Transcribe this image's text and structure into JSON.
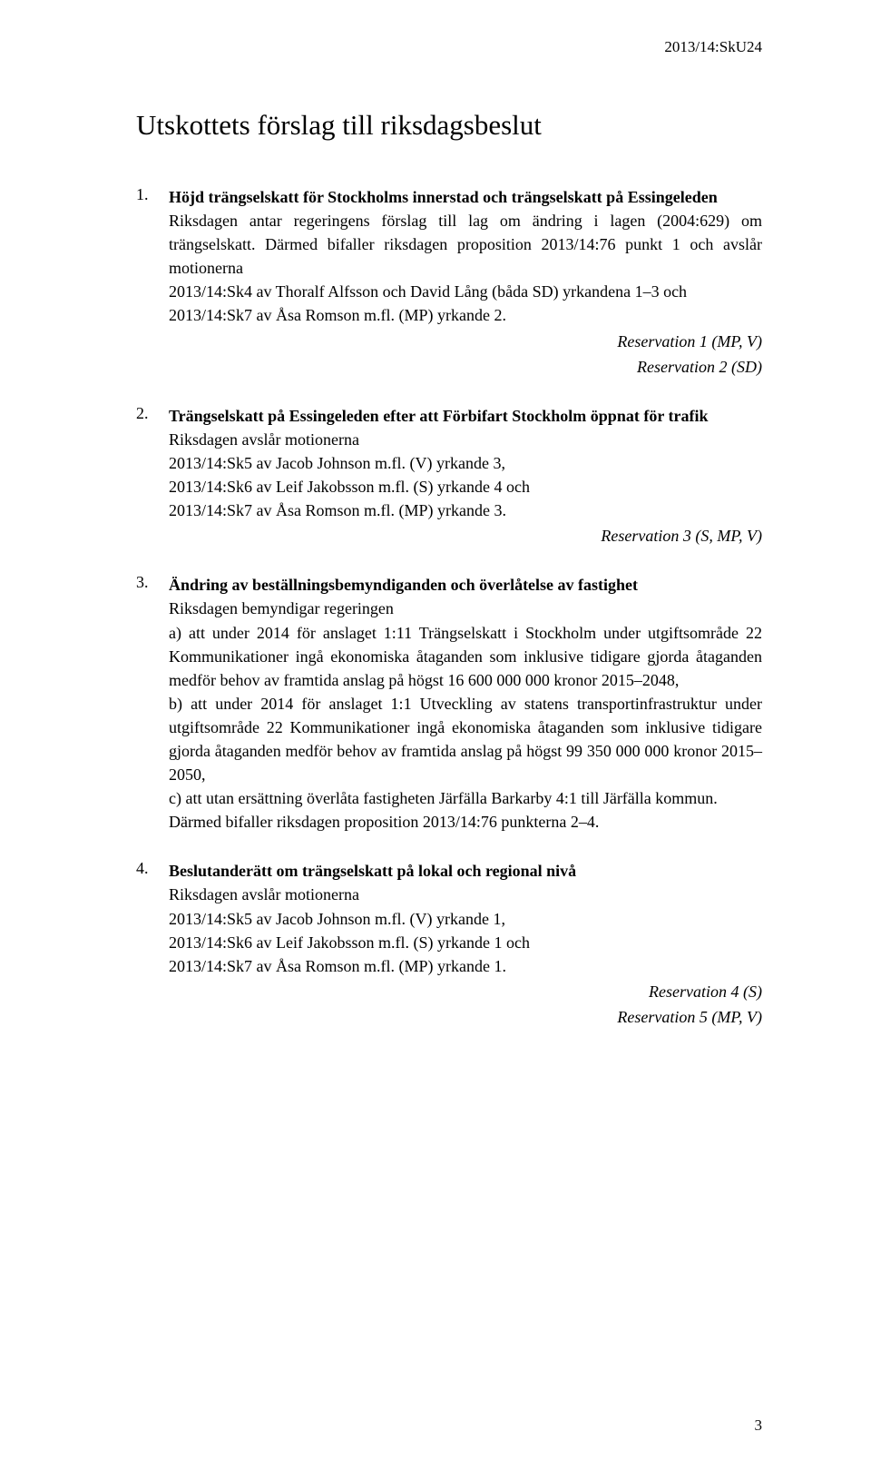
{
  "header": "2013/14:SkU24",
  "title": "Utskottets förslag till riksdagsbeslut",
  "page_number": "3",
  "items": [
    {
      "num": "1.",
      "title": "Höjd trängselskatt för Stockholms innerstad och trängselskatt på Essingeleden",
      "paragraphs": [
        "Riksdagen antar regeringens förslag till lag om ändring i lagen (2004:629) om trängselskatt. Därmed bifaller riksdagen proposition 2013/14:76 punkt 1 och avslår motionerna",
        "2013/14:Sk4 av Thoralf Alfsson och David Lång (båda SD) yrkandena 1–3 och",
        "2013/14:Sk7 av Åsa Romson m.fl. (MP) yrkande 2."
      ],
      "reservations": [
        "Reservation 1 (MP, V)",
        "Reservation 2 (SD)"
      ]
    },
    {
      "num": "2.",
      "title": "Trängselskatt på Essingeleden efter att Förbifart Stockholm öppnat för trafik",
      "paragraphs": [
        "Riksdagen avslår motionerna",
        "2013/14:Sk5 av Jacob Johnson m.fl. (V) yrkande 3,",
        "2013/14:Sk6 av Leif Jakobsson m.fl. (S) yrkande 4 och",
        "2013/14:Sk7 av Åsa Romson m.fl. (MP) yrkande 3."
      ],
      "reservations": [
        "Reservation 3 (S, MP, V)"
      ]
    },
    {
      "num": "3.",
      "title": "Ändring av beställningsbemyndiganden och överlåtelse av fastighet",
      "paragraphs": [
        "Riksdagen bemyndigar regeringen",
        "a) att under 2014 för anslaget 1:11 Trängselskatt i Stockholm under utgiftsområde 22 Kommunikationer ingå ekonomiska åtaganden som inklusive tidigare gjorda åtaganden medför behov av framtida anslag på högst 16 600 000 000 kronor 2015–2048,",
        "b) att under 2014 för anslaget 1:1 Utveckling av statens transportinfrastruktur under utgiftsområde 22 Kommunikationer ingå ekonomiska åtaganden som inklusive tidigare gjorda åtaganden medför behov av framtida anslag på högst 99 350 000 000 kronor 2015–2050,",
        "c) att utan ersättning överlåta fastigheten Järfälla Barkarby 4:1 till Järfälla kommun.",
        "Därmed bifaller riksdagen proposition 2013/14:76 punkterna 2–4."
      ],
      "reservations": []
    },
    {
      "num": "4.",
      "title": "Beslutanderätt om trängselskatt på lokal och regional nivå",
      "paragraphs": [
        "Riksdagen avslår motionerna",
        "2013/14:Sk5 av Jacob Johnson m.fl. (V) yrkande 1,",
        "2013/14:Sk6 av Leif Jakobsson m.fl. (S) yrkande 1 och",
        "2013/14:Sk7 av Åsa Romson m.fl. (MP) yrkande 1."
      ],
      "reservations": [
        "Reservation 4 (S)",
        "Reservation 5 (MP, V)"
      ]
    }
  ]
}
